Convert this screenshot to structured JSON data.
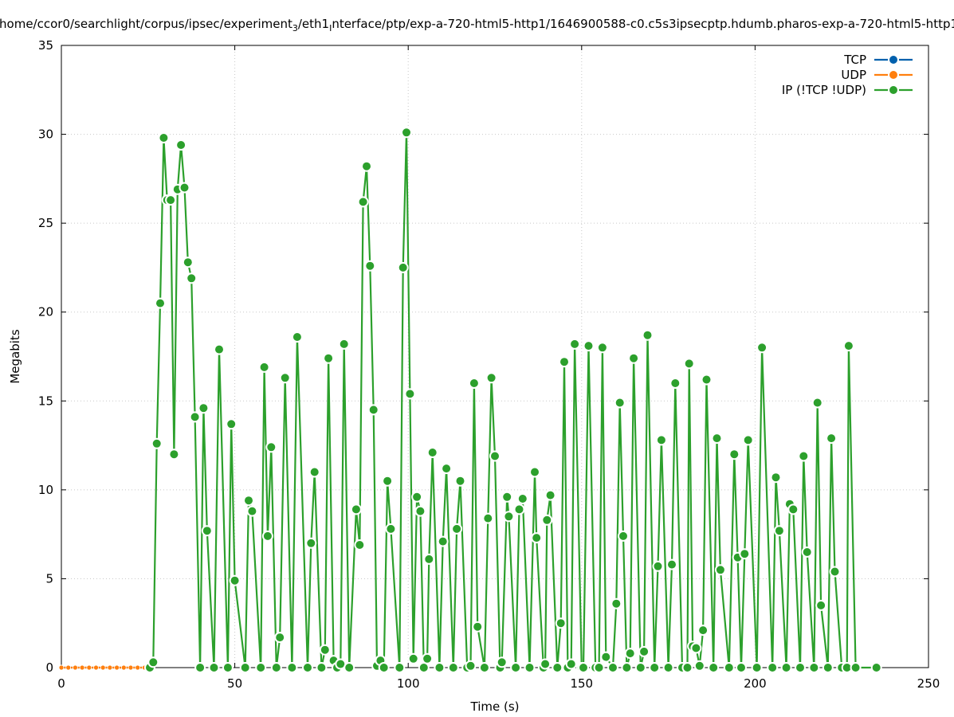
{
  "chart_data": {
    "type": "line",
    "title": "/home/ccor0/searchlight/corpus/ipsec/experiment",
    "title_sub": "3",
    "title_mid": "/eth1",
    "title_sub2": "I",
    "title_end": "nterface/ptp/exp-a-720-html5-http1/1646900588-c0.c5s3ipsecptp.hdumb.pharos-exp-a-720-html5-http1",
    "xlabel": "Time (s)",
    "ylabel": "Megabits",
    "xlim": [
      0,
      250
    ],
    "ylim": [
      0,
      35
    ],
    "xticks": [
      0,
      50,
      100,
      150,
      200,
      250
    ],
    "yticks": [
      0,
      5,
      10,
      15,
      20,
      25,
      30,
      35
    ],
    "grid": true,
    "legend_position": "top-right",
    "series": [
      {
        "name": "TCP",
        "color": "#0060ad",
        "points": [
          [
            0,
            0
          ],
          [
            2,
            0
          ],
          [
            4,
            0
          ],
          [
            6,
            0
          ],
          [
            8,
            0
          ],
          [
            10,
            0
          ],
          [
            12,
            0
          ],
          [
            14,
            0
          ],
          [
            16,
            0
          ],
          [
            18,
            0
          ],
          [
            20,
            0
          ],
          [
            22,
            0
          ],
          [
            24,
            0
          ],
          [
            26,
            0
          ]
        ]
      },
      {
        "name": "UDP",
        "color": "#ff7f0e",
        "points": [
          [
            0,
            0
          ],
          [
            2,
            0
          ],
          [
            4,
            0
          ],
          [
            6,
            0
          ],
          [
            8,
            0
          ],
          [
            10,
            0
          ],
          [
            12,
            0
          ],
          [
            14,
            0
          ],
          [
            16,
            0
          ],
          [
            18,
            0
          ],
          [
            20,
            0
          ],
          [
            22,
            0
          ],
          [
            24,
            0
          ],
          [
            26,
            0
          ]
        ]
      },
      {
        "name": "IP (!TCP  !UDP)",
        "color": "#2ca02c",
        "points": [
          [
            25.5,
            0
          ],
          [
            26.5,
            0.3
          ],
          [
            27.5,
            12.6
          ],
          [
            28.5,
            20.5
          ],
          [
            29.5,
            29.8
          ],
          [
            30.5,
            26.3
          ],
          [
            31.5,
            26.3
          ],
          [
            32.5,
            12
          ],
          [
            33.5,
            26.9
          ],
          [
            34.5,
            29.4
          ],
          [
            35.5,
            27
          ],
          [
            36.5,
            22.8
          ],
          [
            37.5,
            21.9
          ],
          [
            38.5,
            14.1
          ],
          [
            40,
            0
          ],
          [
            41,
            14.6
          ],
          [
            42,
            7.7
          ],
          [
            44,
            0
          ],
          [
            45.5,
            17.9
          ],
          [
            48,
            0
          ],
          [
            49,
            13.7
          ],
          [
            50,
            4.9
          ],
          [
            53,
            0
          ],
          [
            54,
            9.4
          ],
          [
            55,
            8.8
          ],
          [
            57.5,
            0
          ],
          [
            58.5,
            16.9
          ],
          [
            59.5,
            7.4
          ],
          [
            60.5,
            12.4
          ],
          [
            62,
            0
          ],
          [
            63,
            1.7
          ],
          [
            64.5,
            16.3
          ],
          [
            66.5,
            0
          ],
          [
            68,
            18.6
          ],
          [
            71,
            0
          ],
          [
            72,
            7
          ],
          [
            73,
            11
          ],
          [
            75,
            0
          ],
          [
            76,
            1
          ],
          [
            77,
            17.4
          ],
          [
            78.5,
            0.4
          ],
          [
            79.5,
            0
          ],
          [
            80.5,
            0.2
          ],
          [
            81.5,
            18.2
          ],
          [
            83,
            0
          ],
          [
            85,
            8.9
          ],
          [
            86,
            6.9
          ],
          [
            87,
            26.2
          ],
          [
            88,
            28.2
          ],
          [
            89,
            22.6
          ],
          [
            90,
            14.5
          ],
          [
            91,
            0.1
          ],
          [
            92,
            0.4
          ],
          [
            93,
            0
          ],
          [
            94,
            10.5
          ],
          [
            95,
            7.8
          ],
          [
            97.5,
            0
          ],
          [
            98.5,
            22.5
          ],
          [
            99.5,
            30.1
          ],
          [
            100.5,
            15.4
          ],
          [
            101.5,
            0.5
          ],
          [
            102.5,
            9.6
          ],
          [
            103.5,
            8.8
          ],
          [
            104.5,
            0
          ],
          [
            105.5,
            0.5
          ],
          [
            106,
            6.1
          ],
          [
            107,
            12.1
          ],
          [
            109,
            0
          ],
          [
            110,
            7.1
          ],
          [
            111,
            11.2
          ],
          [
            113,
            0
          ],
          [
            114,
            7.8
          ],
          [
            115,
            10.5
          ],
          [
            117,
            0
          ],
          [
            118,
            0.1
          ],
          [
            119,
            16
          ],
          [
            120,
            2.3
          ],
          [
            122,
            0
          ],
          [
            123,
            8.4
          ],
          [
            124,
            16.3
          ],
          [
            125,
            11.9
          ],
          [
            126.5,
            0
          ],
          [
            127,
            0.3
          ],
          [
            128.5,
            9.6
          ],
          [
            129,
            8.5
          ],
          [
            131,
            0
          ],
          [
            132,
            8.9
          ],
          [
            133,
            9.5
          ],
          [
            135,
            0
          ],
          [
            136.5,
            11
          ],
          [
            137,
            7.3
          ],
          [
            139,
            0
          ],
          [
            139.5,
            0.2
          ],
          [
            140,
            8.3
          ],
          [
            141,
            9.7
          ],
          [
            143,
            0
          ],
          [
            144,
            2.5
          ],
          [
            145,
            17.2
          ],
          [
            146,
            0
          ],
          [
            147,
            0.2
          ],
          [
            148,
            18.2
          ],
          [
            150,
            0
          ],
          [
            150.5,
            0
          ],
          [
            152,
            18.1
          ],
          [
            154,
            0
          ],
          [
            155,
            0
          ],
          [
            156,
            18
          ],
          [
            157,
            0.6
          ],
          [
            159,
            0
          ],
          [
            160,
            3.6
          ],
          [
            161,
            14.9
          ],
          [
            162,
            7.4
          ],
          [
            163,
            0
          ],
          [
            164,
            0.8
          ],
          [
            165,
            17.4
          ],
          [
            167,
            0
          ],
          [
            168,
            0.9
          ],
          [
            169,
            18.7
          ],
          [
            171,
            0
          ],
          [
            172,
            5.7
          ],
          [
            173,
            12.8
          ],
          [
            175,
            0
          ],
          [
            176,
            5.8
          ],
          [
            177,
            16
          ],
          [
            179,
            0
          ],
          [
            180.5,
            0
          ],
          [
            181,
            17.1
          ],
          [
            182,
            1.2
          ],
          [
            183,
            1.1
          ],
          [
            184,
            0.1
          ],
          [
            185,
            2.1
          ],
          [
            186,
            16.2
          ],
          [
            188,
            0
          ],
          [
            189,
            12.9
          ],
          [
            190,
            5.5
          ],
          [
            192.5,
            0
          ],
          [
            194,
            12
          ],
          [
            195,
            6.2
          ],
          [
            196,
            0
          ],
          [
            197,
            6.4
          ],
          [
            198,
            12.8
          ],
          [
            200.5,
            0
          ],
          [
            202,
            18
          ],
          [
            205,
            0
          ],
          [
            206,
            10.7
          ],
          [
            207,
            7.7
          ],
          [
            209,
            0
          ],
          [
            210,
            9.2
          ],
          [
            211,
            8.9
          ],
          [
            213,
            0
          ],
          [
            214,
            11.9
          ],
          [
            215,
            6.5
          ],
          [
            217,
            0
          ],
          [
            218,
            14.9
          ],
          [
            219,
            3.5
          ],
          [
            221,
            0
          ],
          [
            222,
            12.9
          ],
          [
            223,
            5.4
          ],
          [
            225,
            0
          ],
          [
            226.5,
            0
          ],
          [
            227,
            18.1
          ],
          [
            229,
            0
          ],
          [
            235,
            0
          ]
        ]
      }
    ]
  }
}
